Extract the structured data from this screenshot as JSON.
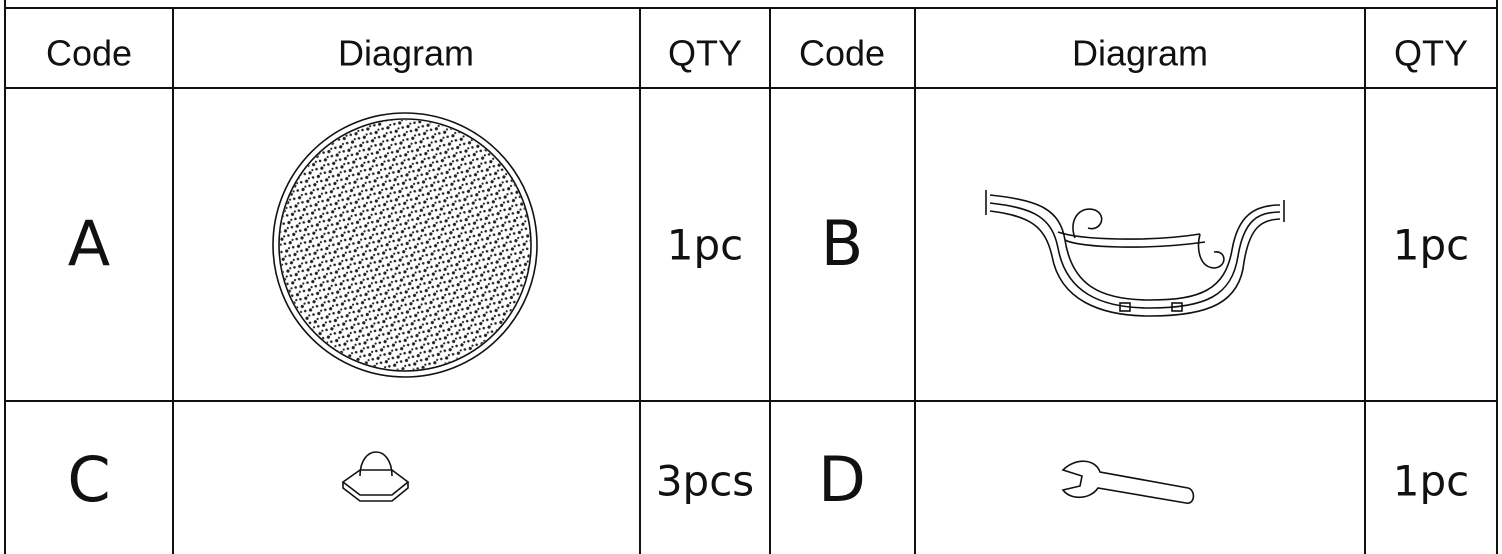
{
  "table": {
    "header": [
      "Code",
      "Diagram",
      "QTY",
      "Code",
      "Diagram",
      "QTY"
    ],
    "rows": [
      [
        "A",
        "1pc",
        "B",
        "1pc"
      ],
      [
        "C",
        "3pcs",
        "D",
        "1pc"
      ]
    ]
  }
}
